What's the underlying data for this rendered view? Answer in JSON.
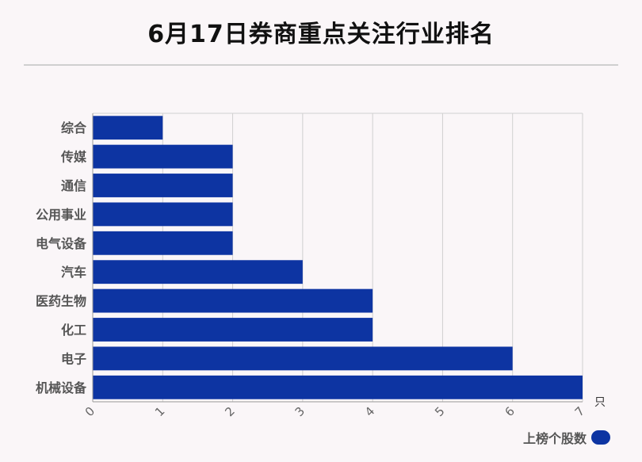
{
  "title": "6月17日券商重点关注行业排名",
  "legend": {
    "label": "上榜个股数",
    "color": "#0d34a2"
  },
  "chart_data": {
    "type": "bar",
    "orientation": "horizontal",
    "title": "6月17日券商重点关注行业排名",
    "categories": [
      "综合",
      "传媒",
      "通信",
      "公用事业",
      "电气设备",
      "汽车",
      "医药生物",
      "化工",
      "电子",
      "机械设备"
    ],
    "series": [
      {
        "name": "上榜个股数",
        "values": [
          1,
          2,
          2,
          2,
          2,
          3,
          4,
          4,
          6,
          7
        ],
        "color": "#0d34a2"
      }
    ],
    "xlim": [
      0,
      7
    ],
    "xticks": [
      "0",
      "1",
      "2",
      "3",
      "4",
      "5",
      "6",
      "7"
    ],
    "xunit": "只",
    "grid": true,
    "legend_position": "bottom-right"
  }
}
